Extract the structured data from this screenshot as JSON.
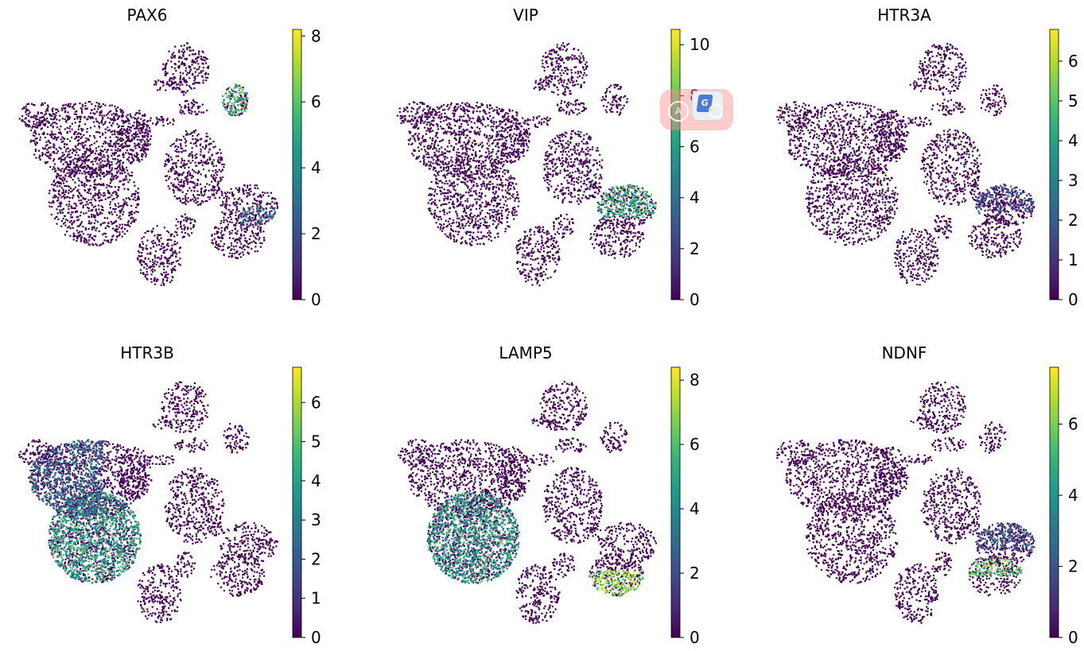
{
  "colormap": [
    "#440154",
    "#482878",
    "#3e4989",
    "#31688e",
    "#26828e",
    "#1f9e89",
    "#35b779",
    "#6ece58",
    "#b5de2b",
    "#fde725"
  ],
  "background_color": "#ffffff",
  "chart_data": [
    {
      "type": "scatter",
      "title": "PAX6",
      "color_range": [
        0,
        8.2
      ],
      "ticks": [
        0,
        2,
        4,
        6,
        8
      ],
      "high_expression_regions": [
        {
          "region": "far-right small top cluster",
          "level": 5.5
        },
        {
          "region": "right-middle cluster, lower part",
          "level": 2.5
        }
      ]
    },
    {
      "type": "scatter",
      "title": "VIP",
      "color_range": [
        0,
        10.6
      ],
      "ticks": [
        0,
        2,
        4,
        6,
        8,
        10
      ],
      "high_expression_regions": [
        {
          "region": "right-middle cluster, upper part",
          "level": 6.5
        }
      ]
    },
    {
      "type": "scatter",
      "title": "HTR3A",
      "color_range": [
        0,
        6.8
      ],
      "ticks": [
        0,
        1,
        2,
        3,
        4,
        5,
        6
      ],
      "high_expression_regions": [
        {
          "region": "right-middle cluster, upper part",
          "level": 1.2
        }
      ]
    },
    {
      "type": "scatter",
      "title": "HTR3B",
      "color_range": [
        0,
        6.9
      ],
      "ticks": [
        0,
        1,
        2,
        3,
        4,
        5,
        6
      ],
      "high_expression_regions": [
        {
          "region": "left-lower large cluster",
          "level": 3.8
        },
        {
          "region": "left-upper large cluster",
          "level": 2.0
        }
      ]
    },
    {
      "type": "scatter",
      "title": "LAMP5",
      "color_range": [
        0,
        8.4
      ],
      "ticks": [
        0,
        2,
        4,
        6,
        8
      ],
      "high_expression_regions": [
        {
          "region": "right-middle cluster, lower part",
          "level": 6.8
        },
        {
          "region": "left-lower large cluster",
          "level": 4.5
        }
      ]
    },
    {
      "type": "scatter",
      "title": "NDNF",
      "color_range": [
        0,
        7.6
      ],
      "ticks": [
        0,
        2,
        4,
        6
      ],
      "high_expression_regions": [
        {
          "region": "right-middle cluster, middle band",
          "level": 5.5
        },
        {
          "region": "right-middle cluster, upper part",
          "level": 2.0
        }
      ]
    }
  ]
}
